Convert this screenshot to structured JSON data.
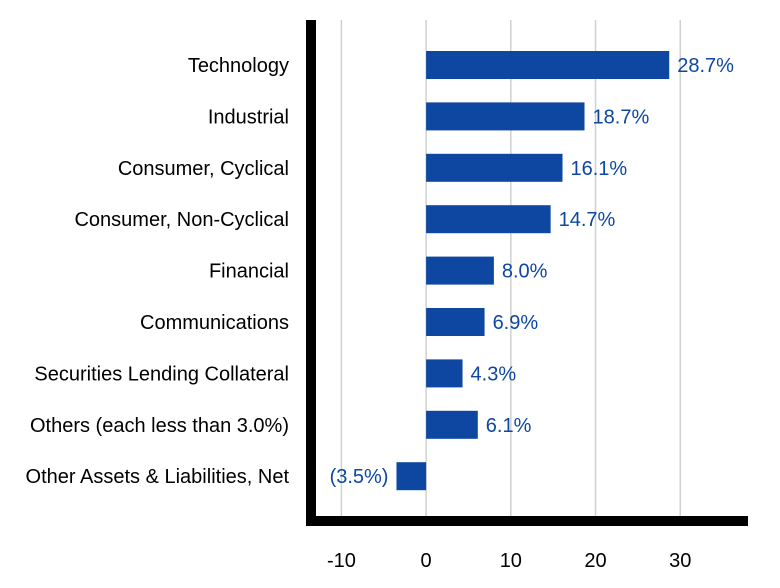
{
  "chart_data": {
    "type": "bar",
    "orientation": "horizontal",
    "title": "",
    "xlabel": "",
    "ylabel": "",
    "categories": [
      "Technology",
      "Industrial",
      "Consumer, Cyclical",
      "Consumer, Non-Cyclical",
      "Financial",
      "Communications",
      "Securities Lending Collateral",
      "Others (each less than 3.0%)",
      "Other Assets & Liabilities, Net"
    ],
    "values": [
      28.7,
      18.7,
      16.1,
      14.7,
      8.0,
      6.9,
      4.3,
      6.1,
      -3.5
    ],
    "value_labels": [
      "28.7%",
      "18.7%",
      "16.1%",
      "14.7%",
      "8.0%",
      "6.9%",
      "4.3%",
      "6.1%",
      "(3.5%)"
    ],
    "xlim": [
      -13,
      38
    ],
    "xticks": [
      -10,
      0,
      10,
      20,
      30
    ],
    "xtick_labels": [
      "-10",
      "0",
      "10",
      "20",
      "30"
    ],
    "grid": "vertical",
    "legend": "none",
    "colors": {
      "bar": "#0D47A1",
      "value_label": "#0D47A1",
      "grid": "#D0D0D0",
      "axis": "#000000"
    }
  }
}
